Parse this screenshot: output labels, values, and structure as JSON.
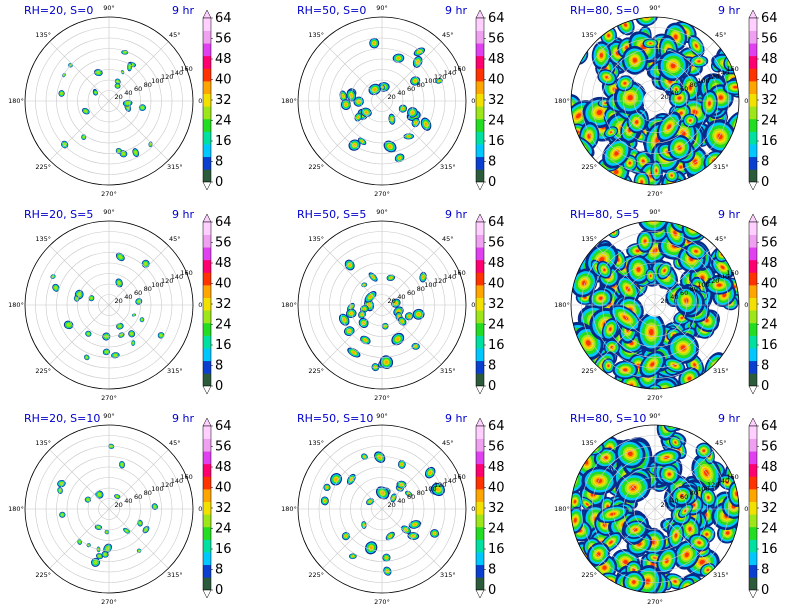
{
  "figure": {
    "time_label": "9 hr",
    "angle_labels": [
      "0°",
      "45°",
      "90°",
      "135°",
      "180°",
      "225°",
      "270°",
      "315°"
    ],
    "radial_labels": [
      "20",
      "40",
      "60",
      "80",
      "100",
      "120",
      "140",
      "160"
    ],
    "colorbar": {
      "ticks": [
        "0",
        "8",
        "16",
        "24",
        "32",
        "40",
        "48",
        "56",
        "64"
      ],
      "colors": [
        "#2b5b3b",
        "#0a3fcf",
        "#00c8ff",
        "#00e0a0",
        "#22dd22",
        "#9ce61a",
        "#f2e000",
        "#ffa500",
        "#ff3300",
        "#ff0070",
        "#e040f0",
        "#f0a0f0",
        "#ffd0ff"
      ]
    }
  },
  "chart_data": [
    {
      "type": "heatmap",
      "title": "RH=20, S=0",
      "time": "9 hr",
      "projection": "polar",
      "r_range": [
        0,
        160
      ],
      "theta_labels": [
        "0°",
        "45°",
        "90°",
        "135°",
        "180°",
        "225°",
        "270°",
        "315°"
      ],
      "colorbar_range": [
        0,
        64
      ]
    },
    {
      "type": "heatmap",
      "title": "RH=50, S=0",
      "time": "9 hr",
      "projection": "polar",
      "r_range": [
        0,
        160
      ],
      "colorbar_range": [
        0,
        64
      ]
    },
    {
      "type": "heatmap",
      "title": "RH=80, S=0",
      "time": "9 hr",
      "projection": "polar",
      "r_range": [
        0,
        160
      ],
      "colorbar_range": [
        0,
        64
      ]
    },
    {
      "type": "heatmap",
      "title": "RH=20, S=5",
      "time": "9 hr",
      "projection": "polar",
      "r_range": [
        0,
        160
      ],
      "colorbar_range": [
        0,
        64
      ]
    },
    {
      "type": "heatmap",
      "title": "RH=50, S=5",
      "time": "9 hr",
      "projection": "polar",
      "r_range": [
        0,
        160
      ],
      "colorbar_range": [
        0,
        64
      ]
    },
    {
      "type": "heatmap",
      "title": "RH=80, S=5",
      "time": "9 hr",
      "projection": "polar",
      "r_range": [
        0,
        160
      ],
      "colorbar_range": [
        0,
        64
      ]
    },
    {
      "type": "heatmap",
      "title": "RH=20, S=10",
      "time": "9 hr",
      "projection": "polar",
      "r_range": [
        0,
        160
      ],
      "colorbar_range": [
        0,
        64
      ]
    },
    {
      "type": "heatmap",
      "title": "RH=50, S=10",
      "time": "9 hr",
      "projection": "polar",
      "r_range": [
        0,
        160
      ],
      "colorbar_range": [
        0,
        64
      ]
    },
    {
      "type": "heatmap",
      "title": "RH=80, S=10",
      "time": "9 hr",
      "projection": "polar",
      "r_range": [
        0,
        160
      ],
      "colorbar_range": [
        0,
        64
      ]
    }
  ]
}
